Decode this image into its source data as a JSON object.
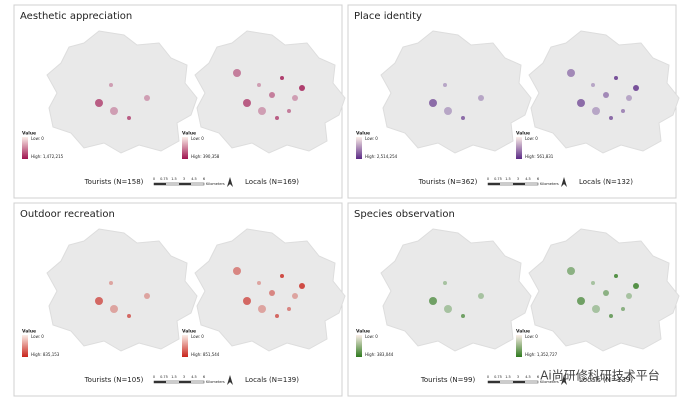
{
  "panels": [
    {
      "title": "Aesthetic appreciation",
      "color": "#a0134f",
      "maps": [
        {
          "label": "Tourists (N=158)",
          "legend": {
            "title": "Value",
            "low": "Low: 0",
            "high": "High: 1,472,215"
          }
        },
        {
          "label": "Locals (N=169)",
          "legend": {
            "title": "Value",
            "low": "Low: 0",
            "high": "High: 390,358"
          }
        }
      ]
    },
    {
      "title": "Place identity",
      "color": "#5b2a86",
      "maps": [
        {
          "label": "Tourists (N=362)",
          "legend": {
            "title": "Value",
            "low": "Low: 0",
            "high": "High: 2,514,254"
          }
        },
        {
          "label": "Locals (N=132)",
          "legend": {
            "title": "Value",
            "low": "Low: 0",
            "high": "High: 561,831"
          }
        }
      ]
    },
    {
      "title": "Outdoor recreation",
      "color": "#c8241b",
      "maps": [
        {
          "label": "Tourists (N=105)",
          "legend": {
            "title": "Value",
            "low": "Low: 0",
            "high": "High: 835,153"
          }
        },
        {
          "label": "Locals (N=139)",
          "legend": {
            "title": "Value",
            "low": "Low: 0",
            "high": "High: 851,544"
          }
        }
      ]
    },
    {
      "title": "Species observation",
      "color": "#2f7a1e",
      "maps": [
        {
          "label": "Tourists (N=99)",
          "legend": {
            "title": "Value",
            "low": "Low: 0",
            "high": "High: 383,044"
          }
        },
        {
          "label": "Locals (N=139)",
          "legend": {
            "title": "Value",
            "low": "Low: 0",
            "high": "High: 1,352,727"
          }
        }
      ]
    }
  ],
  "scale": {
    "labels": [
      "0",
      "0.75",
      "1.5",
      "3",
      "4.5",
      "6"
    ],
    "unit": "Kilometers"
  },
  "watermark": "Ai尚研修科研技术平台"
}
